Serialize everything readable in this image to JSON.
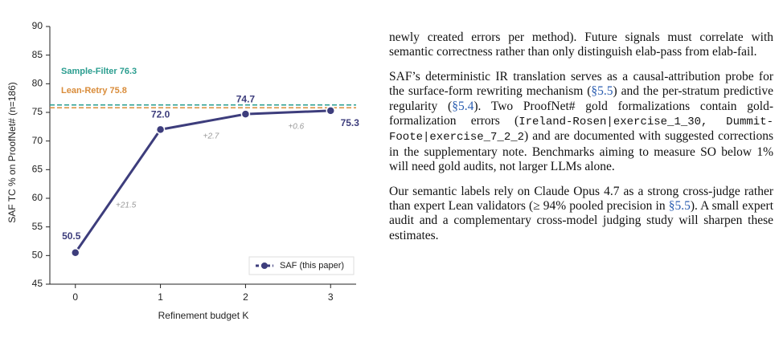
{
  "chart_data": {
    "type": "line",
    "ylabel": "SAF TC % on ProofNet# (n=186)",
    "xlabel": "Refinement budget K",
    "x": [
      0,
      1,
      2,
      3
    ],
    "xlim": [
      -0.3,
      3.3
    ],
    "xticks": [
      0,
      1,
      2,
      3
    ],
    "ylim": [
      45,
      90
    ],
    "yticks": [
      45,
      50,
      55,
      60,
      65,
      70,
      75,
      80,
      85,
      90
    ],
    "series": [
      {
        "name": "SAF (this paper)",
        "color": "#3d3d7c",
        "values": [
          50.5,
          72.0,
          74.7,
          75.3
        ],
        "value_labels": [
          "50.5",
          "72.0",
          "74.7",
          "75.3"
        ]
      }
    ],
    "gain_annotations": [
      "+21.5",
      "+2.7",
      "+0.6"
    ],
    "reference_lines": [
      {
        "label": "Sample-Filter 76.3",
        "value": 76.3,
        "color": "#2a9d8f"
      },
      {
        "label": "Lean-Retry 75.8",
        "value": 75.8,
        "color": "#d98c3a"
      }
    ],
    "legend": "lower right"
  },
  "body": {
    "paragraphs": [
      [
        {
          "text": "newly created errors per method). Future signals must correlate with semantic correctness rather than only distinguish elab-pass from elab-fail."
        }
      ],
      [
        {
          "text": "SAF’s deterministic IR translation serves as a causal-attribution probe for the surface-form rewriting mechanism ("
        },
        {
          "text": "§5.5",
          "color": "#2a5db0"
        },
        {
          "text": ") and the per-stratum predictive regularity ("
        },
        {
          "text": "§5.4",
          "color": "#2a5db0"
        },
        {
          "text": "). Two ProofNet# gold formalizations contain gold-formalization errors ("
        },
        {
          "text": "Ireland-Rosen|exercise_1_30, Dummit-Foote|exercise_7_2_2",
          "font": "mono"
        },
        {
          "text": ") and are documented with suggested corrections in the supplementary note. Benchmarks aiming to measure SO below 1% will need gold audits, not larger LLMs alone."
        }
      ],
      [
        {
          "text": "Our semantic labels rely on Claude Opus 4.7 as a strong cross-judge rather than expert Lean validators (≥ 94% pooled precision in "
        },
        {
          "text": "§5.5",
          "color": "#2a5db0"
        },
        {
          "text": "). A small expert audit and a complementary cross-model judging study will sharpen these estimates."
        }
      ]
    ]
  }
}
